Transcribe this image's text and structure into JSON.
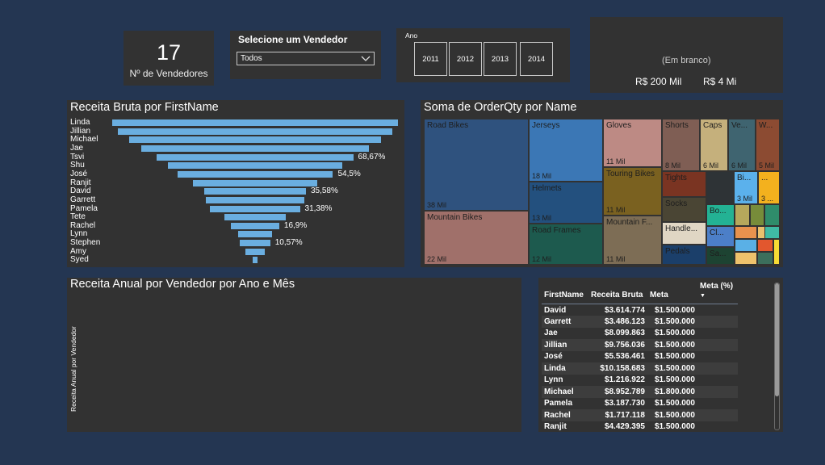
{
  "kpi": {
    "value": "17",
    "label": "Nº de Vendedores"
  },
  "vendor_slicer": {
    "title": "Selecione um Vendedor",
    "selected": "Todos",
    "icon": "chevron-down-icon"
  },
  "year_slicer": {
    "title": "Ano",
    "years": [
      "2011",
      "2012",
      "2013",
      "2014"
    ]
  },
  "card": {
    "blank": "(Em branco)",
    "value1": "R$ 200 Mil",
    "value2": "R$ 4 Mi"
  },
  "funnel": {
    "title": "Receita Bruta por FirstName",
    "color": "#6aaee0",
    "items": [
      {
        "name": "Linda",
        "value": 100,
        "pct": ""
      },
      {
        "name": "Jillian",
        "value": 96.04,
        "pct": ""
      },
      {
        "name": "Michael",
        "value": 88.13,
        "pct": ""
      },
      {
        "name": "Jae",
        "value": 79.74,
        "pct": ""
      },
      {
        "name": "Tsvi",
        "value": 68.67,
        "pct": "68,67%"
      },
      {
        "name": "Shu",
        "value": 61.2,
        "pct": ""
      },
      {
        "name": "José",
        "value": 54.5,
        "pct": "54,5%"
      },
      {
        "name": "Ranjit",
        "value": 43.6,
        "pct": ""
      },
      {
        "name": "David",
        "value": 35.58,
        "pct": "35,58%"
      },
      {
        "name": "Garrett",
        "value": 34.32,
        "pct": ""
      },
      {
        "name": "Pamela",
        "value": 31.38,
        "pct": "31,38%"
      },
      {
        "name": "Tete",
        "value": 21.5,
        "pct": ""
      },
      {
        "name": "Rachel",
        "value": 16.9,
        "pct": "16,9%"
      },
      {
        "name": "Lynn",
        "value": 11.97,
        "pct": ""
      },
      {
        "name": "Stephen",
        "value": 10.57,
        "pct": "10,57%"
      },
      {
        "name": "Amy",
        "value": 6.8,
        "pct": ""
      },
      {
        "name": "Syed",
        "value": 1.5,
        "pct": ""
      }
    ]
  },
  "treemap": {
    "title": "Soma de OrderQty por Name",
    "tiles": [
      {
        "name": "Road Bikes",
        "value": "38 Mil",
        "color": "#2f527e"
      },
      {
        "name": "Mountain Bikes",
        "value": "22 Mil",
        "color": "#a0706a"
      },
      {
        "name": "Jerseys",
        "value": "18 Mil",
        "color": "#3b77b5"
      },
      {
        "name": "Helmets",
        "value": "13 Mil",
        "color": "#23507e"
      },
      {
        "name": "Road Frames",
        "value": "12 Mil",
        "color": "#1d5a4e"
      },
      {
        "name": "Gloves",
        "value": "11 Mil",
        "color": "#bd8a84"
      },
      {
        "name": "Touring Bikes",
        "value": "11 Mil",
        "color": "#7a6120"
      },
      {
        "name": "Mountain F...",
        "value": "11 Mil",
        "color": "#7d6d55"
      },
      {
        "name": "Shorts",
        "value": "8 Mil",
        "color": "#7f5e54"
      },
      {
        "name": "Caps",
        "value": "6 Mil",
        "color": "#c5b07c"
      },
      {
        "name": "Ve...",
        "value": "6 Mil",
        "color": "#3f6470"
      },
      {
        "name": "W...",
        "value": "5 Mil",
        "color": "#8c4b32"
      },
      {
        "name": "Tights",
        "value": "",
        "color": "#7a3422"
      },
      {
        "name": "Socks",
        "value": "",
        "color": "#4a4534"
      },
      {
        "name": "Handle...",
        "value": "",
        "color": "#e0d6c4"
      },
      {
        "name": "Pedals",
        "value": "",
        "color": "#1b3f6a"
      },
      {
        "name": "Bi...",
        "value": "3 Mil",
        "color": "#5bb1ec"
      },
      {
        "name": "...",
        "value": "3 ...",
        "color": "#f3b11e"
      },
      {
        "name": "Bo...",
        "value": "",
        "color": "#23b294"
      },
      {
        "name": "Cl...",
        "value": "",
        "color": "#4c7fc8"
      },
      {
        "name": "Sa...",
        "value": "",
        "color": "#1d4332"
      }
    ],
    "small_colors": [
      "#2e3336",
      "#b6a85c",
      "#778c3a",
      "#2f8c6b",
      "#e8924e",
      "#e9c06e",
      "#5ab0e6",
      "#eec26c",
      "#e2572e",
      "#3c6f5c",
      "#f7db34",
      "#3fbaa4",
      "#8c2d28"
    ]
  },
  "line_chart": {
    "title": "Receita Anual por Vendedor por Ano e Mês",
    "ylabel": "Receita Anual por Vendedor"
  },
  "table": {
    "headers": [
      "FirstName",
      "Receita Bruta",
      "Meta",
      "Meta (%)"
    ],
    "rows": [
      [
        "David",
        "$3.614.774",
        "$1.500.000",
        ""
      ],
      [
        "Garrett",
        "$3.486.123",
        "$1.500.000",
        ""
      ],
      [
        "Jae",
        "$8.099.863",
        "$1.500.000",
        ""
      ],
      [
        "Jillian",
        "$9.756.036",
        "$1.500.000",
        ""
      ],
      [
        "José",
        "$5.536.461",
        "$1.500.000",
        ""
      ],
      [
        "Linda",
        "$10.158.683",
        "$1.500.000",
        ""
      ],
      [
        "Lynn",
        "$1.216.922",
        "$1.500.000",
        ""
      ],
      [
        "Michael",
        "$8.952.789",
        "$1.800.000",
        ""
      ],
      [
        "Pamela",
        "$3.187.730",
        "$1.500.000",
        ""
      ],
      [
        "Rachel",
        "$1.717.118",
        "$1.500.000",
        ""
      ],
      [
        "Ranjit",
        "$4.429.395",
        "$1.500.000",
        ""
      ]
    ]
  },
  "colors": {
    "background": "#243652",
    "panel": "#323232"
  }
}
